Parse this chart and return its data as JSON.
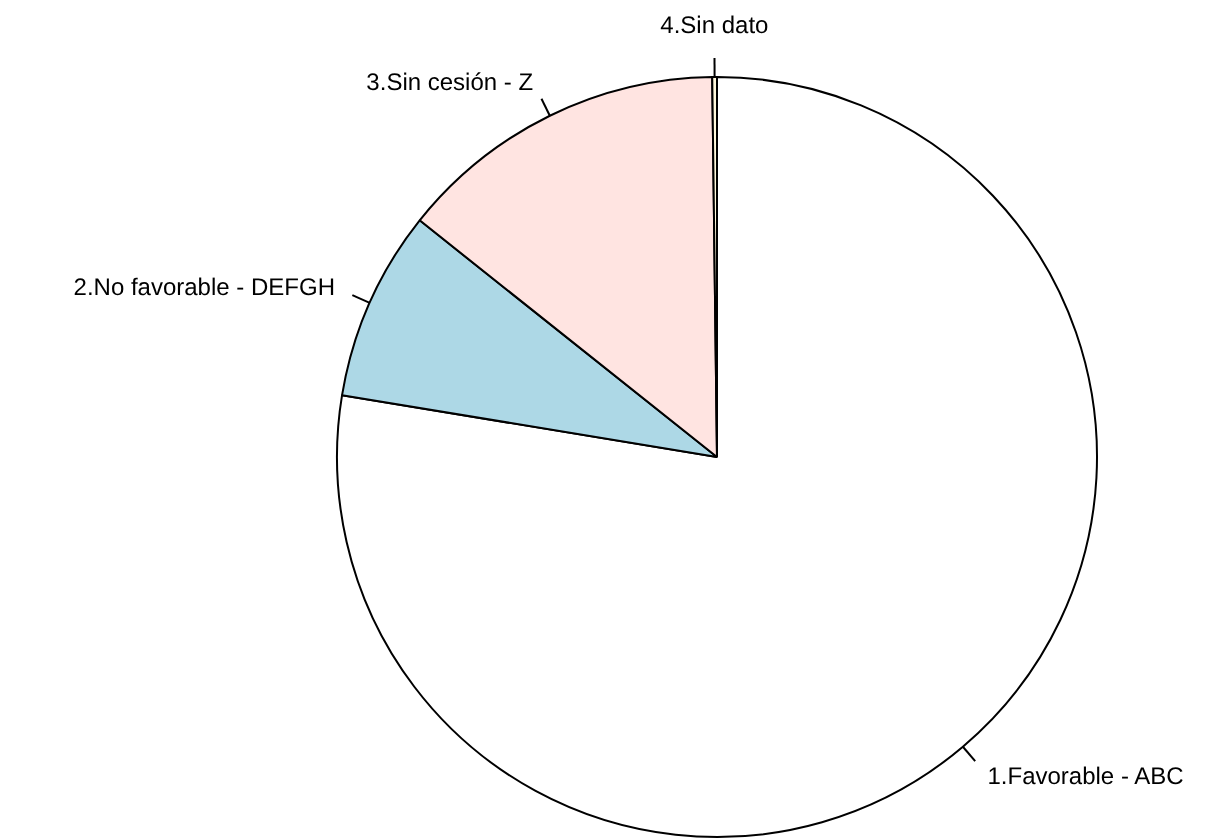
{
  "chart_data": {
    "type": "pie",
    "categories": [
      "1.Favorable - ABC",
      "2.No favorable - DEFGH",
      "3.Sin cesión - Z",
      "4.Sin dato"
    ],
    "values": [
      77.6,
      8.1,
      14.1,
      0.2
    ],
    "colors": [
      "#ffffff",
      "#add8e6",
      "#ffe4e1",
      "#fff8dc"
    ]
  }
}
